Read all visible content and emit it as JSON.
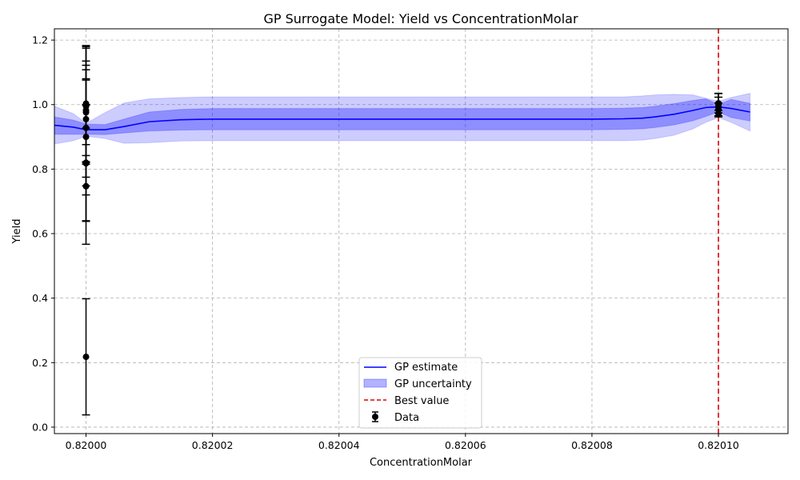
{
  "chart_data": {
    "type": "line",
    "title": "GP Surrogate Model: Yield vs ConcentrationMolar",
    "xlabel": "ConcentrationMolar",
    "ylabel": "Yield",
    "xlim": [
      0.819995,
      0.820111
    ],
    "ylim": [
      -0.02,
      1.235
    ],
    "x_ticks": [
      0.82,
      0.82002,
      0.82004,
      0.82006,
      0.82008,
      0.8201
    ],
    "x_tick_labels": [
      "0.82000",
      "0.82002",
      "0.82004",
      "0.82006",
      "0.82008",
      "0.82010"
    ],
    "y_ticks": [
      0.0,
      0.2,
      0.4,
      0.6,
      0.8,
      1.0,
      1.2
    ],
    "y_tick_labels": [
      "0.0",
      "0.2",
      "0.4",
      "0.6",
      "0.8",
      "1.0",
      "1.2"
    ],
    "grid": true,
    "legend_position": "bottom-center",
    "colors": {
      "gp_line": "#0000ff",
      "band": "#0000ff",
      "best": "#e00000",
      "data": "#000000",
      "grid": "#b0b0b0"
    },
    "series": [
      {
        "name": "GP estimate",
        "x": [
          0.819995,
          0.819998,
          0.82,
          0.820003,
          0.820006,
          0.82001,
          0.820015,
          0.82002,
          0.82003,
          0.82004,
          0.82005,
          0.82006,
          0.82007,
          0.82008,
          0.820085,
          0.820088,
          0.82009,
          0.820093,
          0.820096,
          0.820098,
          0.8201,
          0.820102,
          0.820105
        ],
        "y": [
          0.936,
          0.93,
          0.922,
          0.922,
          0.932,
          0.947,
          0.953,
          0.955,
          0.955,
          0.955,
          0.955,
          0.955,
          0.955,
          0.955,
          0.956,
          0.958,
          0.962,
          0.97,
          0.982,
          0.991,
          0.993,
          0.988,
          0.977
        ],
        "inner_lower": [
          0.908,
          0.908,
          0.908,
          0.907,
          0.912,
          0.918,
          0.921,
          0.922,
          0.922,
          0.922,
          0.922,
          0.922,
          0.922,
          0.922,
          0.923,
          0.925,
          0.929,
          0.937,
          0.95,
          0.963,
          0.978,
          0.96,
          0.949
        ],
        "inner_upper": [
          0.962,
          0.952,
          0.94,
          0.938,
          0.955,
          0.977,
          0.985,
          0.988,
          0.988,
          0.988,
          0.988,
          0.988,
          0.988,
          0.988,
          0.989,
          0.991,
          0.995,
          1.003,
          1.013,
          1.018,
          1.0,
          1.016,
          1.004
        ],
        "outer_lower": [
          0.878,
          0.888,
          0.902,
          0.895,
          0.88,
          0.882,
          0.887,
          0.888,
          0.888,
          0.888,
          0.888,
          0.888,
          0.888,
          0.888,
          0.888,
          0.89,
          0.895,
          0.905,
          0.925,
          0.945,
          0.96,
          0.945,
          0.918
        ],
        "outer_upper": [
          0.995,
          0.972,
          0.942,
          0.975,
          1.005,
          1.018,
          1.022,
          1.024,
          1.024,
          1.024,
          1.024,
          1.024,
          1.024,
          1.024,
          1.024,
          1.027,
          1.03,
          1.032,
          1.03,
          1.02,
          1.01,
          1.022,
          1.035
        ]
      },
      {
        "name": "GP uncertainty"
      },
      {
        "name": "Best value",
        "x": 0.8201
      },
      {
        "name": "Data",
        "points": [
          {
            "x": 0.82,
            "y": 0.218,
            "err": 0.18
          },
          {
            "x": 0.82,
            "y": 0.747,
            "err": 0.18
          },
          {
            "x": 0.82,
            "y": 0.818,
            "err": 0.18
          },
          {
            "x": 0.82,
            "y": 0.82,
            "err": 0.18
          },
          {
            "x": 0.82,
            "y": 0.9,
            "err": 0.18
          },
          {
            "x": 0.82,
            "y": 0.928,
            "err": 0.18
          },
          {
            "x": 0.82,
            "y": 0.955,
            "err": 0.18
          },
          {
            "x": 0.82,
            "y": 0.976,
            "err": 0.1
          },
          {
            "x": 0.82,
            "y": 0.982,
            "err": 0.14
          },
          {
            "x": 0.82,
            "y": 0.995,
            "err": 0.18
          },
          {
            "x": 0.82,
            "y": 1.0,
            "err": 0.18
          },
          {
            "x": 0.82,
            "y": 1.003,
            "err": 0.18
          },
          {
            "x": 0.8201,
            "y": 0.972,
            "err": 0.01
          },
          {
            "x": 0.8201,
            "y": 0.985,
            "err": 0.02
          },
          {
            "x": 0.8201,
            "y": 0.993,
            "err": 0.03
          },
          {
            "x": 0.8201,
            "y": 1.0,
            "err": 0.035
          },
          {
            "x": 0.8201,
            "y": 1.004,
            "err": 0.03
          }
        ]
      }
    ]
  }
}
